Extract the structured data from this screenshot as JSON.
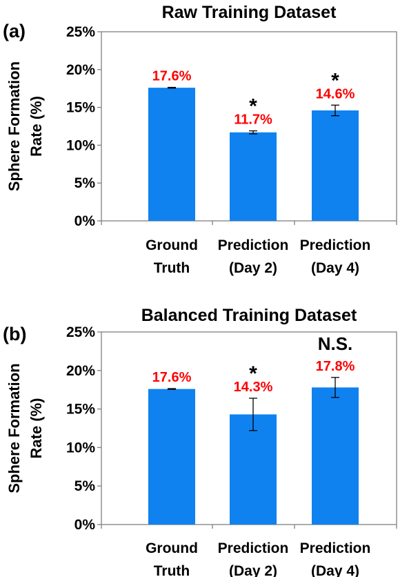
{
  "chart_data": [
    {
      "type": "bar",
      "panel_label": "(a)",
      "title": "Raw Training Dataset",
      "ylabel": "Sphere Formation Rate (%)",
      "ylabel_lines": [
        "Sphere Formation",
        "Rate (%)"
      ],
      "ylim": [
        0,
        25
      ],
      "yticks": [
        "0%",
        "5%",
        "10%",
        "15%",
        "20%",
        "25%"
      ],
      "categories": [
        [
          "Ground",
          "Truth"
        ],
        [
          "Prediction",
          "(Day 2)"
        ],
        [
          "Prediction",
          "(Day 4)"
        ]
      ],
      "values": [
        17.6,
        11.7,
        14.6
      ],
      "errors": [
        0.05,
        0.2,
        0.7
      ],
      "data_labels": [
        "17.6%",
        "11.7%",
        "14.6%"
      ],
      "annotations": [
        "",
        "*",
        "*"
      ],
      "bar_color": "#0f82f0",
      "label_color": "#ff0000",
      "grid": false
    },
    {
      "type": "bar",
      "panel_label": "(b)",
      "title": "Balanced Training Dataset",
      "ylabel": "Sphere Formation Rate (%)",
      "ylabel_lines": [
        "Sphere Formation",
        "Rate (%)"
      ],
      "ylim": [
        0,
        25
      ],
      "yticks": [
        "0%",
        "5%",
        "10%",
        "15%",
        "20%",
        "25%"
      ],
      "categories": [
        [
          "Ground",
          "Truth"
        ],
        [
          "Prediction",
          "(Day 2)"
        ],
        [
          "Prediction",
          "(Day 4)"
        ]
      ],
      "values": [
        17.6,
        14.3,
        17.8
      ],
      "errors": [
        0.05,
        2.1,
        1.3
      ],
      "data_labels": [
        "17.6%",
        "14.3%",
        "17.8%"
      ],
      "annotations": [
        "",
        "*",
        "N.S."
      ],
      "bar_color": "#0f82f0",
      "label_color": "#ff0000",
      "grid": false
    }
  ]
}
